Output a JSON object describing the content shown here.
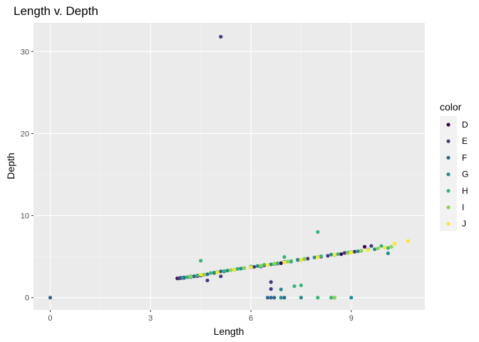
{
  "chart_data": {
    "type": "scatter",
    "title": "Length v. Depth",
    "xlabel": "Length",
    "ylabel": "Depth",
    "xlim": [
      -0.5,
      11.2
    ],
    "ylim": [
      -1.5,
      33.5
    ],
    "x_ticks": [
      0,
      3,
      6,
      9
    ],
    "y_ticks": [
      0,
      10,
      20,
      30
    ],
    "grid": true,
    "legend": {
      "title": "color",
      "position": "right"
    },
    "series": [
      {
        "name": "D",
        "color": "#440154",
        "points": [
          [
            3.8,
            2.35
          ],
          [
            3.9,
            2.4
          ],
          [
            4.0,
            2.45
          ],
          [
            4.1,
            2.5
          ],
          [
            4.2,
            2.55
          ],
          [
            4.3,
            2.6
          ],
          [
            4.4,
            2.62
          ],
          [
            4.5,
            2.7
          ],
          [
            4.6,
            2.8
          ],
          [
            5.0,
            3.1
          ],
          [
            5.5,
            3.4
          ],
          [
            6.0,
            3.7
          ],
          [
            6.4,
            3.95
          ],
          [
            6.9,
            4.2
          ],
          [
            7.4,
            4.6
          ],
          [
            8.1,
            5.0
          ],
          [
            8.7,
            5.3
          ],
          [
            9.4,
            6.2
          ],
          [
            9.3,
            5.7
          ]
        ]
      },
      {
        "name": "E",
        "color": "#443A83",
        "points": [
          [
            5.1,
            31.8
          ],
          [
            3.85,
            2.35
          ],
          [
            4.0,
            2.4
          ],
          [
            4.2,
            2.5
          ],
          [
            4.4,
            2.65
          ],
          [
            4.6,
            2.8
          ],
          [
            4.9,
            3.0
          ],
          [
            5.2,
            3.2
          ],
          [
            5.5,
            3.4
          ],
          [
            5.8,
            3.6
          ],
          [
            6.1,
            3.75
          ],
          [
            6.3,
            3.8
          ],
          [
            6.8,
            4.15
          ],
          [
            7.2,
            4.4
          ],
          [
            7.7,
            4.75
          ],
          [
            8.3,
            5.1
          ],
          [
            8.8,
            5.45
          ],
          [
            9.1,
            5.6
          ],
          [
            9.6,
            6.3
          ],
          [
            6.6,
            1.05
          ],
          [
            6.6,
            1.9
          ],
          [
            5.1,
            2.6
          ],
          [
            4.7,
            2.1
          ]
        ]
      },
      {
        "name": "F",
        "color": "#31688E",
        "points": [
          [
            0.0,
            0.0
          ],
          [
            4.0,
            2.45
          ],
          [
            4.3,
            2.6
          ],
          [
            4.7,
            2.85
          ],
          [
            5.1,
            3.2
          ],
          [
            5.6,
            3.5
          ],
          [
            6.0,
            3.7
          ],
          [
            6.3,
            3.85
          ],
          [
            6.7,
            4.1
          ],
          [
            7.1,
            4.4
          ],
          [
            7.5,
            4.6
          ],
          [
            8.0,
            4.95
          ],
          [
            8.5,
            5.2
          ],
          [
            6.5,
            0.0
          ],
          [
            6.7,
            0.0
          ],
          [
            7.0,
            0.0
          ],
          [
            6.6,
            0.0
          ]
        ]
      },
      {
        "name": "G",
        "color": "#21908C",
        "points": [
          [
            3.95,
            2.4
          ],
          [
            4.2,
            2.6
          ],
          [
            4.5,
            2.75
          ],
          [
            4.9,
            3.05
          ],
          [
            5.3,
            3.3
          ],
          [
            5.7,
            3.55
          ],
          [
            6.2,
            3.85
          ],
          [
            6.6,
            4.05
          ],
          [
            7.0,
            4.35
          ],
          [
            7.4,
            4.6
          ],
          [
            7.9,
            4.9
          ],
          [
            8.4,
            5.25
          ],
          [
            8.9,
            5.5
          ],
          [
            9.2,
            5.65
          ],
          [
            9.7,
            5.9
          ],
          [
            10.1,
            5.4
          ],
          [
            6.9,
            0.0
          ],
          [
            7.5,
            0.0
          ],
          [
            9.0,
            0.0
          ],
          [
            8.5,
            0.0
          ],
          [
            6.9,
            1.0
          ]
        ]
      },
      {
        "name": "H",
        "color": "#35B779",
        "points": [
          [
            4.1,
            2.5
          ],
          [
            4.4,
            2.7
          ],
          [
            4.5,
            4.5
          ],
          [
            4.8,
            3.0
          ],
          [
            5.2,
            3.25
          ],
          [
            5.6,
            3.5
          ],
          [
            6.0,
            3.8
          ],
          [
            6.4,
            4.0
          ],
          [
            6.8,
            4.2
          ],
          [
            7.2,
            4.45
          ],
          [
            7.6,
            4.7
          ],
          [
            7.0,
            4.95
          ],
          [
            8.1,
            5.05
          ],
          [
            8.0,
            8.0
          ],
          [
            8.6,
            5.3
          ],
          [
            9.0,
            5.55
          ],
          [
            9.5,
            5.85
          ],
          [
            9.9,
            6.3
          ],
          [
            10.1,
            6.05
          ],
          [
            8.0,
            0.0
          ],
          [
            8.4,
            0.0
          ],
          [
            8.5,
            0.0
          ],
          [
            7.3,
            1.4
          ],
          [
            7.5,
            1.5
          ]
        ]
      },
      {
        "name": "I",
        "color": "#8FD744",
        "points": [
          [
            4.2,
            2.55
          ],
          [
            4.6,
            2.8
          ],
          [
            5.0,
            3.1
          ],
          [
            5.4,
            3.35
          ],
          [
            5.8,
            3.6
          ],
          [
            6.3,
            3.9
          ],
          [
            6.7,
            4.15
          ],
          [
            7.1,
            4.4
          ],
          [
            7.6,
            4.75
          ],
          [
            8.0,
            4.95
          ],
          [
            8.5,
            5.2
          ],
          [
            8.9,
            5.45
          ],
          [
            9.3,
            5.7
          ],
          [
            9.8,
            6.0
          ],
          [
            10.2,
            6.2
          ],
          [
            8.5,
            0.0
          ]
        ]
      },
      {
        "name": "J",
        "color": "#FDE725",
        "points": [
          [
            4.5,
            2.8
          ],
          [
            5.0,
            3.05
          ],
          [
            5.5,
            3.4
          ],
          [
            6.0,
            3.7
          ],
          [
            6.5,
            4.0
          ],
          [
            7.0,
            4.3
          ],
          [
            7.5,
            4.6
          ],
          [
            8.0,
            4.9
          ],
          [
            8.5,
            5.25
          ],
          [
            9.0,
            5.5
          ],
          [
            9.5,
            5.8
          ],
          [
            10.0,
            6.1
          ],
          [
            10.3,
            6.6
          ],
          [
            10.7,
            6.9
          ]
        ]
      }
    ]
  }
}
